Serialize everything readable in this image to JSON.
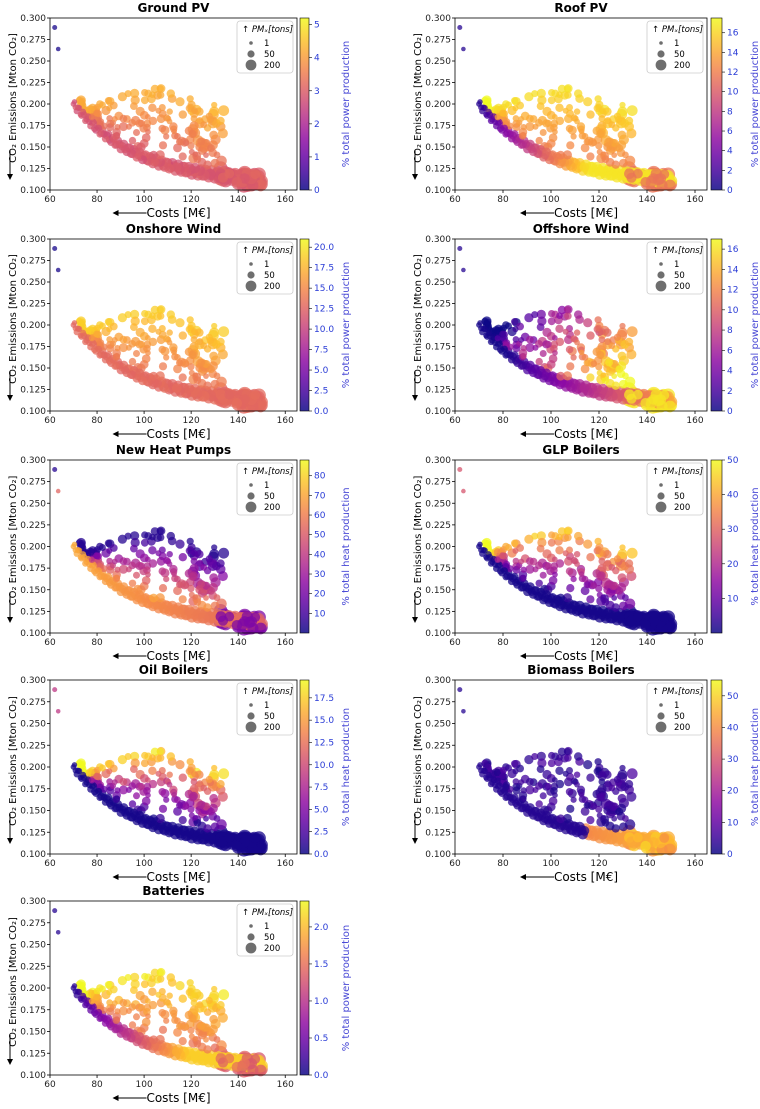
{
  "figure": {
    "xlabel": "Costs [M€]",
    "ylabel": "CO₂ Emissions [Mton CO₂]",
    "legend": {
      "title": "↑ PMₓ[tons]",
      "sizes": [
        "1",
        "50",
        "200"
      ]
    },
    "xlim": [
      60,
      165
    ],
    "ylim": [
      0.1,
      0.3
    ],
    "xticks": [
      60,
      80,
      100,
      120,
      140,
      160
    ],
    "yticks": [
      0.1,
      0.125,
      0.15,
      0.175,
      0.2,
      0.225,
      0.25,
      0.275,
      0.3
    ],
    "yticks_text": [
      "0.100",
      "0.125",
      "0.150",
      "0.175",
      "0.200",
      "0.225",
      "0.250",
      "0.275",
      "0.300"
    ],
    "colormap": "plasma",
    "legend_placement": "top-right"
  },
  "chart_data": [
    {
      "type": "scatter",
      "title": "Ground PV",
      "clabel": "% total power production",
      "cticks": [
        0,
        1,
        2,
        3,
        4,
        5
      ],
      "cticks_text": [
        "0",
        "1",
        "2",
        "3",
        "4",
        "5"
      ],
      "cmax": 5.2,
      "pattern": "ground_pv"
    },
    {
      "type": "scatter",
      "title": "Roof PV",
      "clabel": "% total power production",
      "cticks": [
        0,
        2,
        4,
        6,
        8,
        10,
        12,
        14,
        16
      ],
      "cticks_text": [
        "0",
        "2",
        "4",
        "6",
        "8",
        "10",
        "12",
        "14",
        "16"
      ],
      "cmax": 17.5,
      "pattern": "roof_pv"
    },
    {
      "type": "scatter",
      "title": "Onshore Wind",
      "clabel": "% total power production",
      "cticks": [
        0,
        2.5,
        5,
        7.5,
        10,
        12.5,
        15,
        17.5,
        20
      ],
      "cticks_text": [
        "0.0",
        "2.5",
        "5.0",
        "7.5",
        "10.0",
        "12.5",
        "15.0",
        "17.5",
        "20.0"
      ],
      "cmax": 21,
      "pattern": "onshore"
    },
    {
      "type": "scatter",
      "title": "Offshore Wind",
      "clabel": "% total power production",
      "cticks": [
        0,
        2,
        4,
        6,
        8,
        10,
        12,
        14,
        16
      ],
      "cticks_text": [
        "0",
        "2",
        "4",
        "6",
        "8",
        "10",
        "12",
        "14",
        "16"
      ],
      "cmax": 17,
      "pattern": "offshore"
    },
    {
      "type": "scatter",
      "title": "New Heat Pumps",
      "clabel": "% total heat production",
      "cticks": [
        10,
        20,
        30,
        40,
        50,
        60,
        70,
        80
      ],
      "cticks_text": [
        "10",
        "20",
        "30",
        "40",
        "50",
        "60",
        "70",
        "80"
      ],
      "cmin": 0,
      "cmax": 88,
      "pattern": "heat_pumps"
    },
    {
      "type": "scatter",
      "title": "GLP Boilers",
      "clabel": "% total heat production",
      "cticks": [
        10,
        20,
        30,
        40,
        50
      ],
      "cticks_text": [
        "10",
        "20",
        "30",
        "40",
        "50"
      ],
      "cmin": 0,
      "cmax": 50,
      "pattern": "glp"
    },
    {
      "type": "scatter",
      "title": "Oil Boilers",
      "clabel": "% total heat production",
      "cticks": [
        0,
        2.5,
        5,
        7.5,
        10,
        12.5,
        15,
        17.5
      ],
      "cticks_text": [
        "0.0",
        "2.5",
        "5.0",
        "7.5",
        "10.0",
        "12.5",
        "15.0",
        "17.5"
      ],
      "cmax": 19.5,
      "pattern": "oil"
    },
    {
      "type": "scatter",
      "title": "Biomass Boilers",
      "clabel": "% total heat production",
      "cticks": [
        0,
        10,
        20,
        30,
        40,
        50
      ],
      "cticks_text": [
        "0",
        "10",
        "20",
        "30",
        "40",
        "50"
      ],
      "cmax": 55,
      "pattern": "biomass"
    },
    {
      "type": "scatter",
      "title": "Batteries",
      "clabel": "% total power production",
      "cticks": [
        0,
        0.5,
        1,
        1.5,
        2
      ],
      "cticks_text": [
        "0.0",
        "0.5",
        "1.0",
        "1.5",
        "2.0"
      ],
      "cmax": 2.35,
      "pattern": "batteries"
    }
  ]
}
